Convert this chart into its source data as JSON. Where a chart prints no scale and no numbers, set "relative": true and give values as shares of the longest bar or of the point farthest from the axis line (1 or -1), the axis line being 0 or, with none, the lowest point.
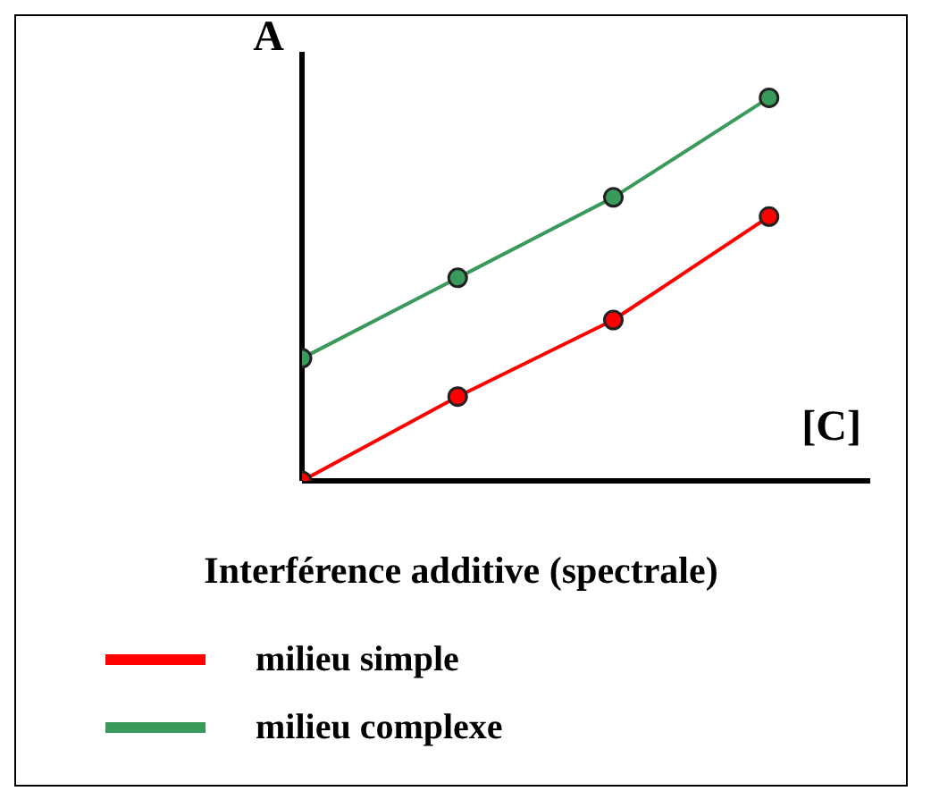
{
  "chart_data": {
    "type": "line",
    "relative": true,
    "title": "Interférence additive (spectrale)",
    "xlabel": "[C]",
    "ylabel": "A",
    "categories": [
      null,
      null,
      null,
      null
    ],
    "series": [
      {
        "name": "milieu simple",
        "color": "#ff0000",
        "values": [
          0,
          0.22,
          0.42,
          0.69
        ]
      },
      {
        "name": "milieu complexe",
        "color": "#3a9a5b",
        "values": [
          0.32,
          0.53,
          0.74,
          1
        ]
      }
    ],
    "marker": "circle",
    "legend": "bottom",
    "grid": false
  }
}
